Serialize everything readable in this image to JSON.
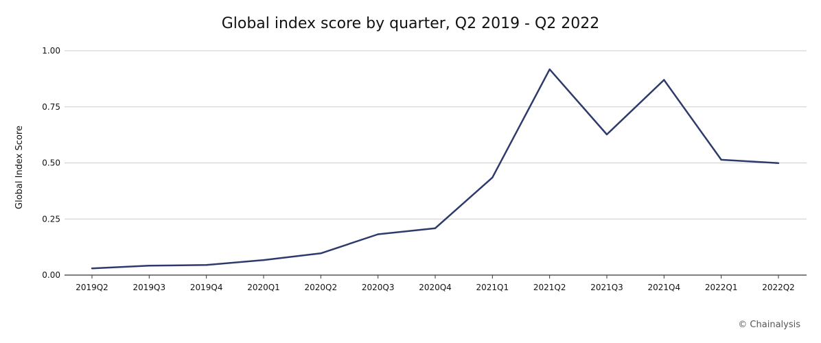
{
  "chart_data": {
    "type": "line",
    "title": "Global index score by quarter, Q2 2019 - Q2 2022",
    "xlabel": "",
    "ylabel": "Global Index Score",
    "categories": [
      "2019Q2",
      "2019Q3",
      "2019Q4",
      "2020Q1",
      "2020Q2",
      "2020Q3",
      "2020Q4",
      "2021Q1",
      "2021Q2",
      "2021Q3",
      "2021Q4",
      "2022Q1",
      "2022Q2"
    ],
    "series": [
      {
        "values": [
          0.03,
          0.042,
          0.045,
          0.067,
          0.097,
          0.182,
          0.209,
          0.435,
          0.917,
          0.627,
          0.87,
          0.514,
          0.499
        ]
      }
    ],
    "ylim": [
      0,
      1
    ],
    "yticks": [
      "0.00",
      "0.25",
      "0.50",
      "0.75",
      "1.00"
    ],
    "grid": true,
    "legend": "none",
    "line_color": "#2e3a6b",
    "grid_color": "#cccccc"
  },
  "credit": "© Chainalysis"
}
